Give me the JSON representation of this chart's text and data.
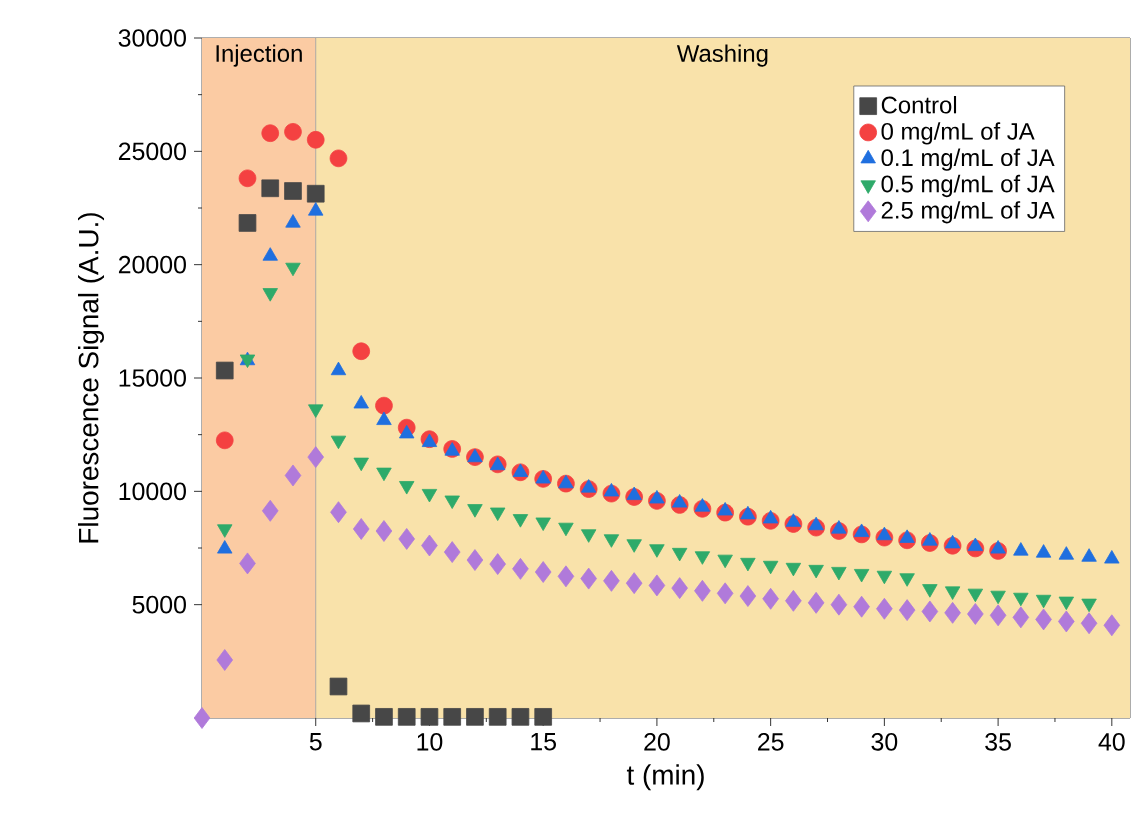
{
  "chart_data": {
    "type": "scatter",
    "xlabel": "t (min)",
    "ylabel": "Fluorescence Signal (A.U.)",
    "xlim": [
      0,
      40.8
    ],
    "ylim": [
      0,
      30000
    ],
    "xticks": [
      5,
      10,
      15,
      20,
      25,
      30,
      35,
      40
    ],
    "yticks": [
      5000,
      10000,
      15000,
      20000,
      25000,
      30000
    ],
    "legend": "top right",
    "ref_lines": [
      {
        "axis": "x",
        "value": 5,
        "color": "#999999"
      }
    ],
    "bands": [
      {
        "axis": "x",
        "from": 0,
        "to": 5,
        "label": "Injection",
        "color": "#fbcba3"
      },
      {
        "axis": "x",
        "from": 5,
        "to": 40.8,
        "label": "Washing",
        "color": "#f9e2aa"
      }
    ],
    "series": [
      {
        "name": "Control",
        "color": "#474747",
        "marker": "square",
        "x": [
          1,
          2,
          3,
          4,
          5,
          6,
          7,
          8,
          9,
          10,
          11,
          12,
          13,
          14,
          15
        ],
        "values": [
          15330,
          21840,
          23370,
          23250,
          23130,
          1390,
          200,
          50,
          50,
          50,
          50,
          50,
          50,
          50,
          50
        ]
      },
      {
        "name": "0 mg/mL of JA",
        "color": "#f44141",
        "marker": "circle",
        "x": [
          1,
          2,
          3,
          4,
          5,
          6,
          7,
          8,
          9,
          10,
          11,
          12,
          13,
          14,
          15,
          16,
          17,
          18,
          19,
          20,
          21,
          22,
          23,
          24,
          25,
          26,
          27,
          28,
          29,
          30,
          31,
          32,
          33,
          34,
          35
        ],
        "values": [
          12250,
          23810,
          25800,
          25860,
          25510,
          24690,
          16180,
          13780,
          12810,
          12300,
          11870,
          11510,
          11190,
          10840,
          10550,
          10340,
          10100,
          9900,
          9750,
          9580,
          9400,
          9230,
          9060,
          8880,
          8700,
          8560,
          8400,
          8250,
          8100,
          7960,
          7840,
          7720,
          7600,
          7480,
          7370
        ]
      },
      {
        "name": "0.1 mg/mL of JA",
        "color": "#1f6fdf",
        "marker": "triangle",
        "x": [
          1,
          2,
          3,
          4,
          5,
          6,
          7,
          8,
          9,
          10,
          11,
          12,
          13,
          14,
          15,
          16,
          17,
          18,
          19,
          20,
          21,
          22,
          23,
          24,
          25,
          26,
          27,
          28,
          29,
          30,
          31,
          32,
          33,
          34,
          35,
          36,
          37,
          38,
          39,
          40
        ],
        "values": [
          7460,
          15770,
          20380,
          21840,
          22370,
          15330,
          13860,
          13130,
          12540,
          12160,
          11780,
          11490,
          11140,
          10840,
          10550,
          10340,
          10150,
          9980,
          9820,
          9670,
          9490,
          9310,
          9140,
          8970,
          8790,
          8640,
          8490,
          8340,
          8190,
          8050,
          7930,
          7810,
          7690,
          7570,
          7460,
          7370,
          7280,
          7190,
          7100,
          7020
        ]
      },
      {
        "name": "0.5 mg/mL of JA",
        "color": "#2eaa6a",
        "marker": "triangle down",
        "x": [
          1,
          2,
          3,
          4,
          5,
          6,
          7,
          8,
          9,
          10,
          11,
          12,
          13,
          14,
          15,
          16,
          17,
          18,
          19,
          20,
          21,
          22,
          23,
          24,
          25,
          26,
          27,
          28,
          29,
          30,
          31,
          32,
          33,
          34,
          35,
          36,
          37,
          38,
          39
        ],
        "values": [
          8340,
          15830,
          18760,
          19880,
          13630,
          12250,
          11280,
          10840,
          10250,
          9900,
          9610,
          9230,
          9080,
          8790,
          8640,
          8410,
          8120,
          7900,
          7680,
          7460,
          7300,
          7150,
          7000,
          6860,
          6730,
          6640,
          6550,
          6460,
          6370,
          6290,
          6180,
          5700,
          5600,
          5500,
          5410,
          5320,
          5230,
          5150,
          5060
        ]
      },
      {
        "name": "2.5 mg/mL of JA",
        "color": "#b07ada",
        "marker": "diamond",
        "x": [
          0,
          1,
          2,
          3,
          4,
          5,
          6,
          7,
          8,
          9,
          10,
          11,
          12,
          13,
          14,
          15,
          16,
          17,
          18,
          19,
          20,
          21,
          22,
          23,
          24,
          25,
          26,
          27,
          28,
          29,
          30,
          31,
          32,
          33,
          34,
          35,
          36,
          37,
          38,
          39,
          40
        ],
        "values": [
          0,
          2560,
          6820,
          9140,
          10700,
          11510,
          9080,
          8340,
          8250,
          7900,
          7610,
          7320,
          6970,
          6790,
          6580,
          6440,
          6250,
          6150,
          6050,
          5950,
          5850,
          5730,
          5610,
          5500,
          5380,
          5260,
          5170,
          5080,
          5000,
          4910,
          4820,
          4760,
          4700,
          4640,
          4590,
          4530,
          4440,
          4350,
          4260,
          4180,
          4090
        ]
      }
    ]
  }
}
